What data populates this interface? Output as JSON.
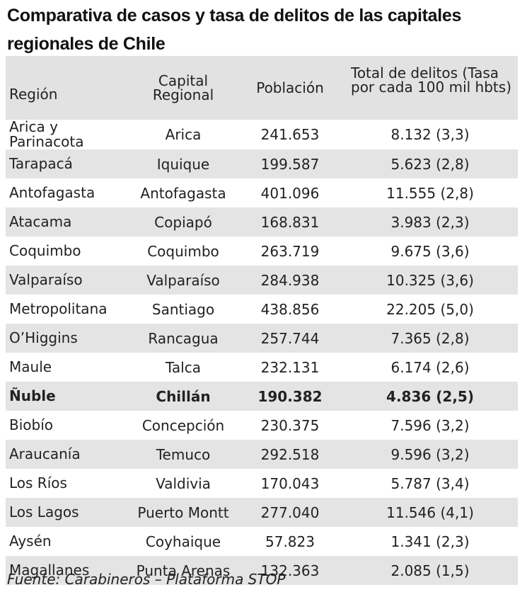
{
  "title": "Comparativa de casos y tasa de delitos de las capitales regionales de Chile",
  "headers": {
    "region": "Región",
    "capital": "Capital Regional",
    "poblacion": "Población",
    "delitos": "Total de delitos (Tasa por cada 100 mil hbts)"
  },
  "rows": [
    {
      "region": "Arica y Parinacota",
      "capital": "Arica",
      "poblacion": "241.653",
      "delitos": "8.132   (3,3)"
    },
    {
      "region": "Tarapacá",
      "capital": "Iquique",
      "poblacion": "199.587",
      "delitos": "5.623    (2,8)"
    },
    {
      "region": "Antofagasta",
      "capital": "Antofagasta",
      "poblacion": "401.096",
      "delitos": "11.555 (2,8)"
    },
    {
      "region": "Atacama",
      "capital": "Copiapó",
      "poblacion": "168.831",
      "delitos": "3.983 (2,3)"
    },
    {
      "region": "Coquimbo",
      "capital": "Coquimbo",
      "poblacion": "263.719",
      "delitos": "9.675 (3,6)"
    },
    {
      "region": "Valparaíso",
      "capital": "Valparaíso",
      "poblacion": "284.938",
      "delitos": "10.325 (3,6)"
    },
    {
      "region": "Metropolitana",
      "capital": "Santiago",
      "poblacion": "438.856",
      "delitos": "22.205 (5,0)"
    },
    {
      "region": "O’Higgins",
      "capital": "Rancagua",
      "poblacion": "257.744",
      "delitos": "7.365 (2,8)"
    },
    {
      "region": "Maule",
      "capital": "Talca",
      "poblacion": "232.131",
      "delitos": "6.174 (2,6)"
    },
    {
      "region": "Ñuble",
      "capital": "Chillán",
      "poblacion": "190.382",
      "delitos": "4.836 (2,5)",
      "highlight": true
    },
    {
      "region": "Biobío",
      "capital": "Concepción",
      "poblacion": "230.375",
      "delitos": "7.596 (3,2)"
    },
    {
      "region": "Araucanía",
      "capital": "Temuco",
      "poblacion": "292.518",
      "delitos": "9.596 (3,2)"
    },
    {
      "region": "Los Ríos",
      "capital": "Valdivia",
      "poblacion": "170.043",
      "delitos": "5.787 (3,4)"
    },
    {
      "region": "Los Lagos",
      "capital": "Puerto Montt",
      "poblacion": "277.040",
      "delitos": "11.546 (4,1)"
    },
    {
      "region": "Aysén",
      "capital": "Coyhaique",
      "poblacion": "57.823",
      "delitos": "1.341 (2,3)"
    },
    {
      "region": "Magallanes",
      "capital": "Punta Arenas",
      "poblacion": "132.363",
      "delitos": "2.085 (1,5)"
    }
  ],
  "source": "Fuente: Carabineros – Plataforma STOP"
}
